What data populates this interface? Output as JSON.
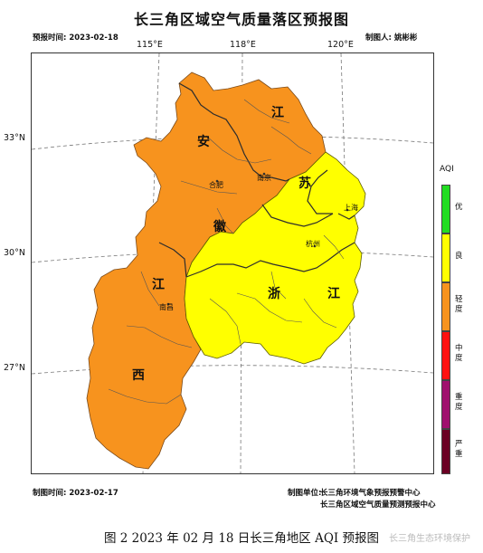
{
  "title": "长三角区域空气质量落区预报图",
  "forecast_time": "预报时间: 2023-02-18",
  "author": "制图人: 姚彬彬",
  "made_time": "制图时间: 2023-02-17",
  "unit_label": "制图单位:",
  "unit_line1": "长三角环境气象预报预警中心",
  "unit_line2": "长三角区域空气质量预测预报中心",
  "lon_labels": [
    "115°E",
    "118°E",
    "120°E"
  ],
  "lat_labels": [
    "33°N",
    "30°N",
    "27°N"
  ],
  "legend": {
    "title": "AQI",
    "items": [
      {
        "label": "优",
        "color": "#22dd22"
      },
      {
        "label": "良",
        "color": "#ffff00"
      },
      {
        "label": "轻度",
        "color": "#f7931e"
      },
      {
        "label": "中度",
        "color": "#ff1111"
      },
      {
        "label": "重度",
        "color": "#a0106e"
      },
      {
        "label": "严重",
        "color": "#6b0024"
      }
    ]
  },
  "province_chars": [
    "江",
    "安",
    "苏",
    "徽",
    "江",
    "浙",
    "江",
    "西"
  ],
  "cities": [
    "合肥",
    "南京",
    "上海",
    "杭州",
    "南昌"
  ],
  "caption": "图 2 2023 年 02 月 18 日长三角地区 AQI 预报图",
  "watermark": "长三角生态环境保护"
}
